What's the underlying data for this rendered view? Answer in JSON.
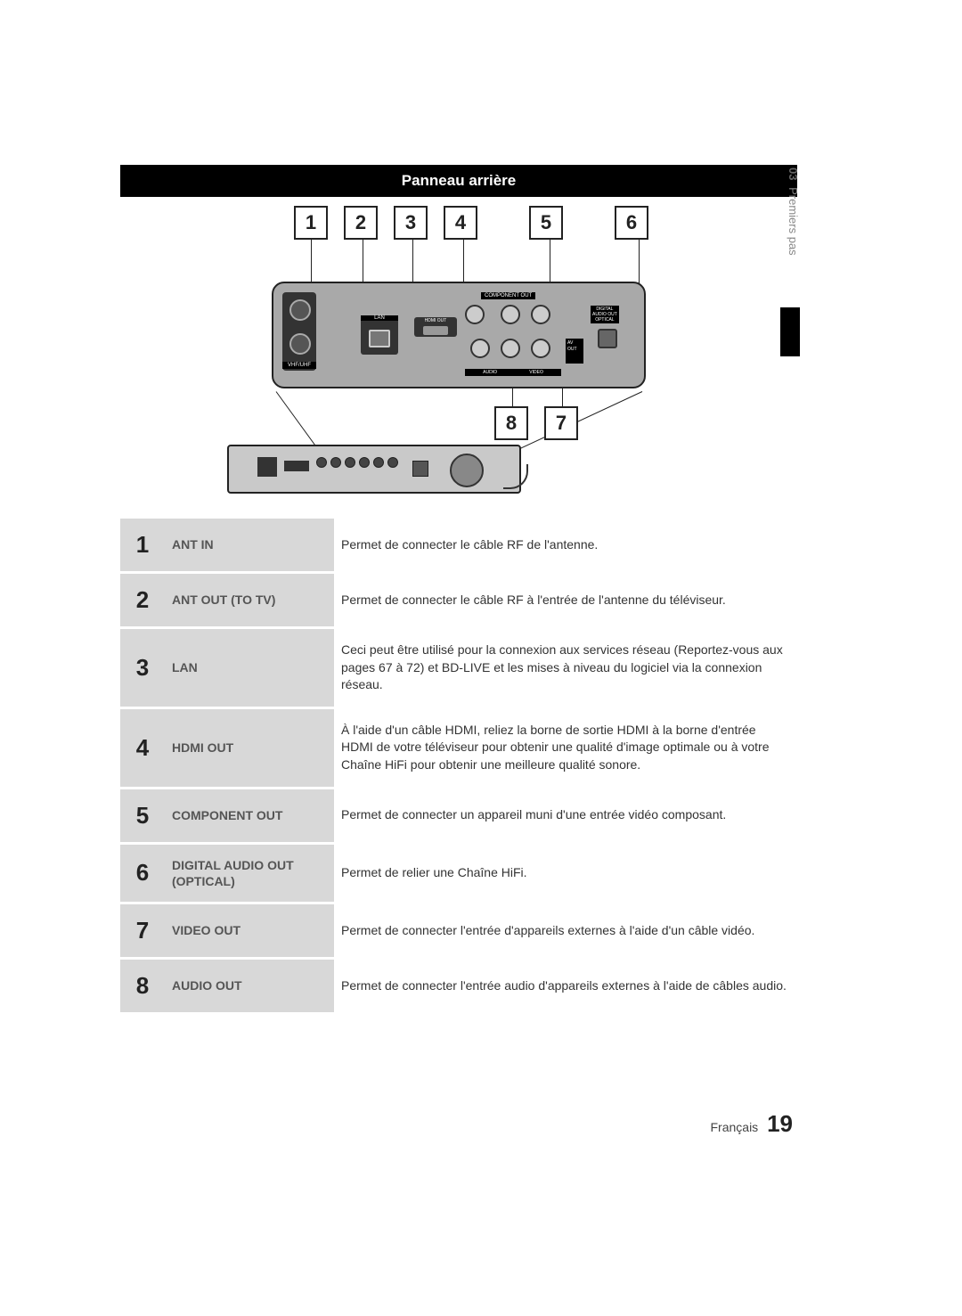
{
  "header": {
    "title": "Panneau arrière"
  },
  "sidebar": {
    "chapter": "03",
    "section": "Premiers pas"
  },
  "callouts_top": [
    "1",
    "2",
    "3",
    "4",
    "5",
    "6"
  ],
  "callouts_bottom": [
    "8",
    "7"
  ],
  "diagram_labels": {
    "vhf": "VHF/UHF",
    "lan": "LAN",
    "hdmi": "HDMI OUT",
    "component": "COMPONENT OUT",
    "audio": "AUDIO",
    "video": "VIDEO",
    "avout": "AV OUT",
    "digital_l1": "DIGITAL",
    "digital_l2": "AUDIO OUT",
    "digital_l3": "OPTICAL"
  },
  "table": [
    {
      "num": "1",
      "label": "ANT IN",
      "desc": "Permet de connecter le câble RF de l'antenne."
    },
    {
      "num": "2",
      "label": "ANT OUT (TO TV)",
      "desc": "Permet de connecter le câble RF à l'entrée de l'antenne du téléviseur."
    },
    {
      "num": "3",
      "label": "LAN",
      "desc": "Ceci peut être utilisé pour la connexion aux services réseau (Reportez-vous aux pages 67 à 72) et BD-LIVE et les mises à niveau du logiciel via la connexion réseau."
    },
    {
      "num": "4",
      "label": "HDMI OUT",
      "desc": "À l'aide d'un câble HDMI, reliez la borne de sortie HDMI à la borne d'entrée HDMI de votre téléviseur pour obtenir une qualité d'image optimale ou à votre Chaîne HiFi pour obtenir une meilleure qualité sonore."
    },
    {
      "num": "5",
      "label": "COMPONENT OUT",
      "desc": "Permet de connecter un appareil muni d'une entrée vidéo composant."
    },
    {
      "num": "6",
      "label": "DIGITAL AUDIO OUT (OPTICAL)",
      "desc": "Permet de relier une Chaîne HiFi."
    },
    {
      "num": "7",
      "label": "VIDEO OUT",
      "desc": "Permet de connecter l'entrée d'appareils externes à l'aide d'un câble vidéo."
    },
    {
      "num": "8",
      "label": "AUDIO OUT",
      "desc": "Permet de connecter l'entrée audio d'appareils externes à l'aide de câbles audio."
    }
  ],
  "footer": {
    "lang": "Français",
    "page": "19"
  },
  "colors": {
    "header_bg": "#000000",
    "header_fg": "#ffffff",
    "row_bg": "#d8d8d8",
    "text": "#333333"
  }
}
